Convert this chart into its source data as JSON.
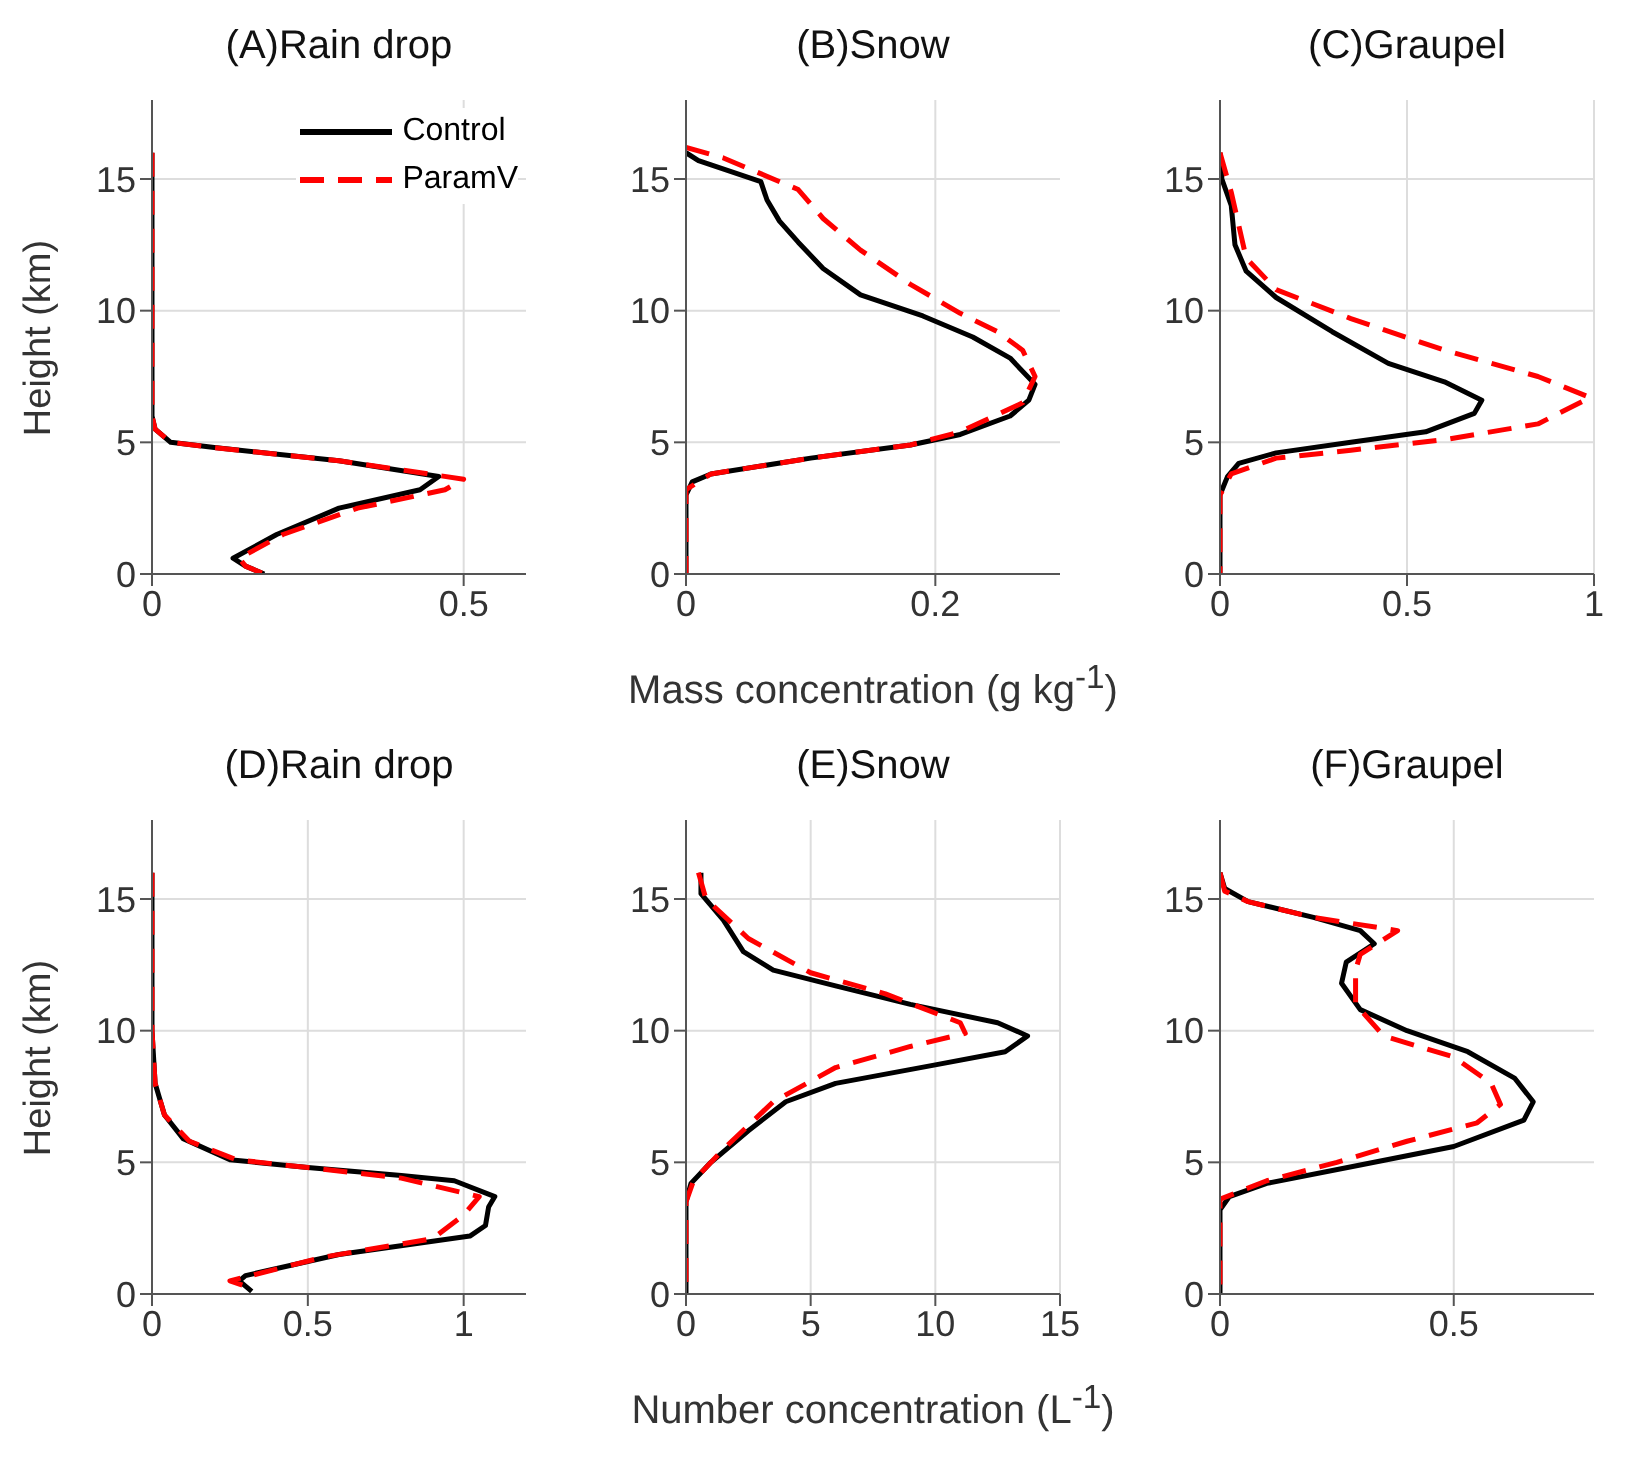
{
  "chart_data": [
    {
      "type": "line",
      "title": "(A)Rain drop",
      "ylabel": "Height (km)",
      "xlim": [
        0,
        0.6
      ],
      "xticks": [
        0,
        0.5
      ],
      "ylim": [
        0,
        18
      ],
      "yticks": [
        0,
        5,
        10,
        15
      ],
      "grid": true,
      "legend": "top right",
      "series": [
        {
          "name": "Control",
          "color": "#000000",
          "line_style": "solid",
          "x": [
            0,
            0,
            0.005,
            0.03,
            0.1,
            0.3,
            0.46,
            0.43,
            0.3,
            0.2,
            0.13,
            0.15,
            0.18
          ],
          "values": [
            16,
            6,
            5.5,
            5,
            4.8,
            4.3,
            3.7,
            3.2,
            2.5,
            1.5,
            0.6,
            0.3,
            0
          ]
        },
        {
          "name": "ParamV",
          "color": "#ff0000",
          "line_style": "dashed",
          "x": [
            0,
            0,
            0.005,
            0.03,
            0.1,
            0.3,
            0.5,
            0.47,
            0.33,
            0.21,
            0.14,
            0.15,
            0.18
          ],
          "values": [
            16,
            6,
            5.5,
            5,
            4.8,
            4.3,
            3.6,
            3.2,
            2.5,
            1.5,
            0.6,
            0.3,
            0
          ]
        }
      ]
    },
    {
      "type": "line",
      "title": "(B)Snow",
      "xlabel": "Mass concentration (g kg$^{-1}$)",
      "xlim": [
        0,
        0.3
      ],
      "xticks": [
        0,
        0.2
      ],
      "ylim": [
        0,
        18
      ],
      "yticks": [
        0,
        5,
        10,
        15
      ],
      "grid": true,
      "series": [
        {
          "color": "#000000",
          "line_style": "solid",
          "x": [
            0,
            0.01,
            0.06,
            0.065,
            0.075,
            0.09,
            0.11,
            0.14,
            0.19,
            0.23,
            0.26,
            0.28,
            0.275,
            0.26,
            0.22,
            0.18,
            0.1,
            0.02,
            0.005,
            0,
            0
          ],
          "values": [
            16,
            15.7,
            14.9,
            14.2,
            13.4,
            12.6,
            11.6,
            10.6,
            9.8,
            9,
            8.2,
            7.2,
            6.6,
            6,
            5.3,
            4.9,
            4.4,
            3.8,
            3.5,
            3,
            0
          ]
        },
        {
          "color": "#ff0000",
          "line_style": "dashed",
          "x": [
            0,
            0.03,
            0.09,
            0.11,
            0.14,
            0.18,
            0.22,
            0.25,
            0.27,
            0.28,
            0.27,
            0.22,
            0.18,
            0.1,
            0.02,
            0,
            0
          ],
          "values": [
            16.2,
            15.8,
            14.6,
            13.5,
            12.3,
            11,
            9.9,
            9.2,
            8.5,
            7.5,
            6.5,
            5.4,
            4.9,
            4.4,
            3.8,
            3.2,
            0
          ]
        }
      ]
    },
    {
      "type": "line",
      "title": "(C)Graupel",
      "xlim": [
        0,
        1
      ],
      "xticks": [
        0,
        0.5,
        1
      ],
      "ylim": [
        0,
        18
      ],
      "yticks": [
        0,
        5,
        10,
        15
      ],
      "grid": true,
      "series": [
        {
          "color": "#000000",
          "line_style": "solid",
          "x": [
            0,
            0.005,
            0.03,
            0.04,
            0.07,
            0.15,
            0.3,
            0.45,
            0.6,
            0.7,
            0.68,
            0.55,
            0.35,
            0.15,
            0.05,
            0.02,
            0,
            0
          ],
          "values": [
            16,
            15,
            14,
            12.5,
            11.5,
            10.5,
            9.2,
            8,
            7.3,
            6.6,
            6.1,
            5.4,
            5,
            4.6,
            4.2,
            3.7,
            3,
            0
          ]
        },
        {
          "color": "#ff0000",
          "line_style": "dashed",
          "x": [
            0,
            0.03,
            0.07,
            0.15,
            0.35,
            0.6,
            0.85,
            0.99,
            0.85,
            0.6,
            0.35,
            0.15,
            0.03,
            0,
            0
          ],
          "values": [
            16,
            14.5,
            12,
            10.8,
            9.7,
            8.5,
            7.5,
            6.7,
            5.7,
            5.1,
            4.7,
            4.4,
            3.8,
            3,
            0
          ]
        }
      ]
    },
    {
      "type": "line",
      "title": "(D)Rain drop",
      "ylabel": "Height (km)",
      "xlim": [
        0,
        1.2
      ],
      "xticks": [
        0,
        0.5,
        1
      ],
      "ylim": [
        0,
        18
      ],
      "yticks": [
        0,
        5,
        10,
        15
      ],
      "grid": true,
      "series": [
        {
          "color": "#000000",
          "line_style": "solid",
          "x": [
            0,
            0,
            0.01,
            0.04,
            0.1,
            0.25,
            0.5,
            0.8,
            0.97,
            1.1,
            1.08,
            1.07,
            1.02,
            0.6,
            0.3,
            0.28,
            0.32
          ],
          "values": [
            16,
            10,
            8,
            6.8,
            5.9,
            5.1,
            4.8,
            4.5,
            4.3,
            3.7,
            3.3,
            2.6,
            2.2,
            1.5,
            0.7,
            0.5,
            0.1
          ]
        },
        {
          "color": "#ff0000",
          "line_style": "dashed",
          "x": [
            0,
            0,
            0.01,
            0.04,
            0.12,
            0.27,
            0.5,
            0.8,
            1.05,
            1,
            0.9,
            0.55,
            0.25,
            0.3
          ],
          "values": [
            16,
            10,
            8,
            6.8,
            5.8,
            5.1,
            4.8,
            4.4,
            3.7,
            3,
            2.1,
            1.4,
            0.5,
            0.3
          ]
        }
      ]
    },
    {
      "type": "line",
      "title": "(E)Snow",
      "xlabel": "Number concentration (L$^{-1}$)",
      "xlim": [
        0,
        15
      ],
      "xticks": [
        0,
        5,
        10,
        15
      ],
      "ylim": [
        0,
        18
      ],
      "yticks": [
        0,
        5,
        10,
        15
      ],
      "grid": true,
      "series": [
        {
          "color": "#000000",
          "line_style": "solid",
          "x": [
            0.6,
            0.6,
            1.5,
            2.3,
            3.5,
            6,
            9,
            12.5,
            13.7,
            12.8,
            10,
            6,
            4,
            2.5,
            1,
            0.2,
            0,
            0
          ],
          "values": [
            16,
            15.2,
            14.2,
            13,
            12.3,
            11.7,
            11,
            10.3,
            9.8,
            9.2,
            8.7,
            8,
            7.3,
            6.2,
            5,
            4.2,
            3.5,
            0
          ]
        },
        {
          "color": "#ff0000",
          "line_style": "dashed",
          "x": [
            0.5,
            0.8,
            2.5,
            5,
            8,
            11,
            11.2,
            9,
            6,
            3.5,
            1.5,
            0.3,
            0,
            0
          ],
          "values": [
            16,
            15,
            13.5,
            12.2,
            11.4,
            10.3,
            9.9,
            9.4,
            8.6,
            7.3,
            5.5,
            4.3,
            3.5,
            0
          ]
        }
      ]
    },
    {
      "type": "line",
      "title": "(F)Graupel",
      "xlim": [
        0,
        0.8
      ],
      "xticks": [
        0,
        0.5
      ],
      "ylim": [
        0,
        18
      ],
      "yticks": [
        0,
        5,
        10,
        15
      ],
      "grid": true,
      "series": [
        {
          "color": "#000000",
          "line_style": "solid",
          "x": [
            0,
            0.01,
            0.06,
            0.2,
            0.3,
            0.33,
            0.27,
            0.26,
            0.3,
            0.4,
            0.53,
            0.63,
            0.67,
            0.65,
            0.5,
            0.3,
            0.1,
            0.02,
            0,
            0
          ],
          "values": [
            16,
            15.4,
            14.9,
            14.3,
            13.8,
            13.3,
            12.6,
            11.8,
            10.8,
            10,
            9.2,
            8.2,
            7.3,
            6.6,
            5.6,
            4.9,
            4.2,
            3.7,
            3.2,
            0
          ]
        },
        {
          "color": "#ff0000",
          "line_style": "dashed",
          "x": [
            0,
            0.01,
            0.06,
            0.2,
            0.38,
            0.3,
            0.29,
            0.29,
            0.35,
            0.5,
            0.58,
            0.6,
            0.55,
            0.4,
            0.25,
            0.1,
            0,
            0
          ],
          "values": [
            16,
            15.3,
            14.9,
            14.3,
            13.8,
            12.9,
            12.3,
            11,
            9.8,
            9,
            8,
            7.2,
            6.5,
            5.8,
            5,
            4.3,
            3.6,
            0
          ]
        }
      ]
    }
  ]
}
